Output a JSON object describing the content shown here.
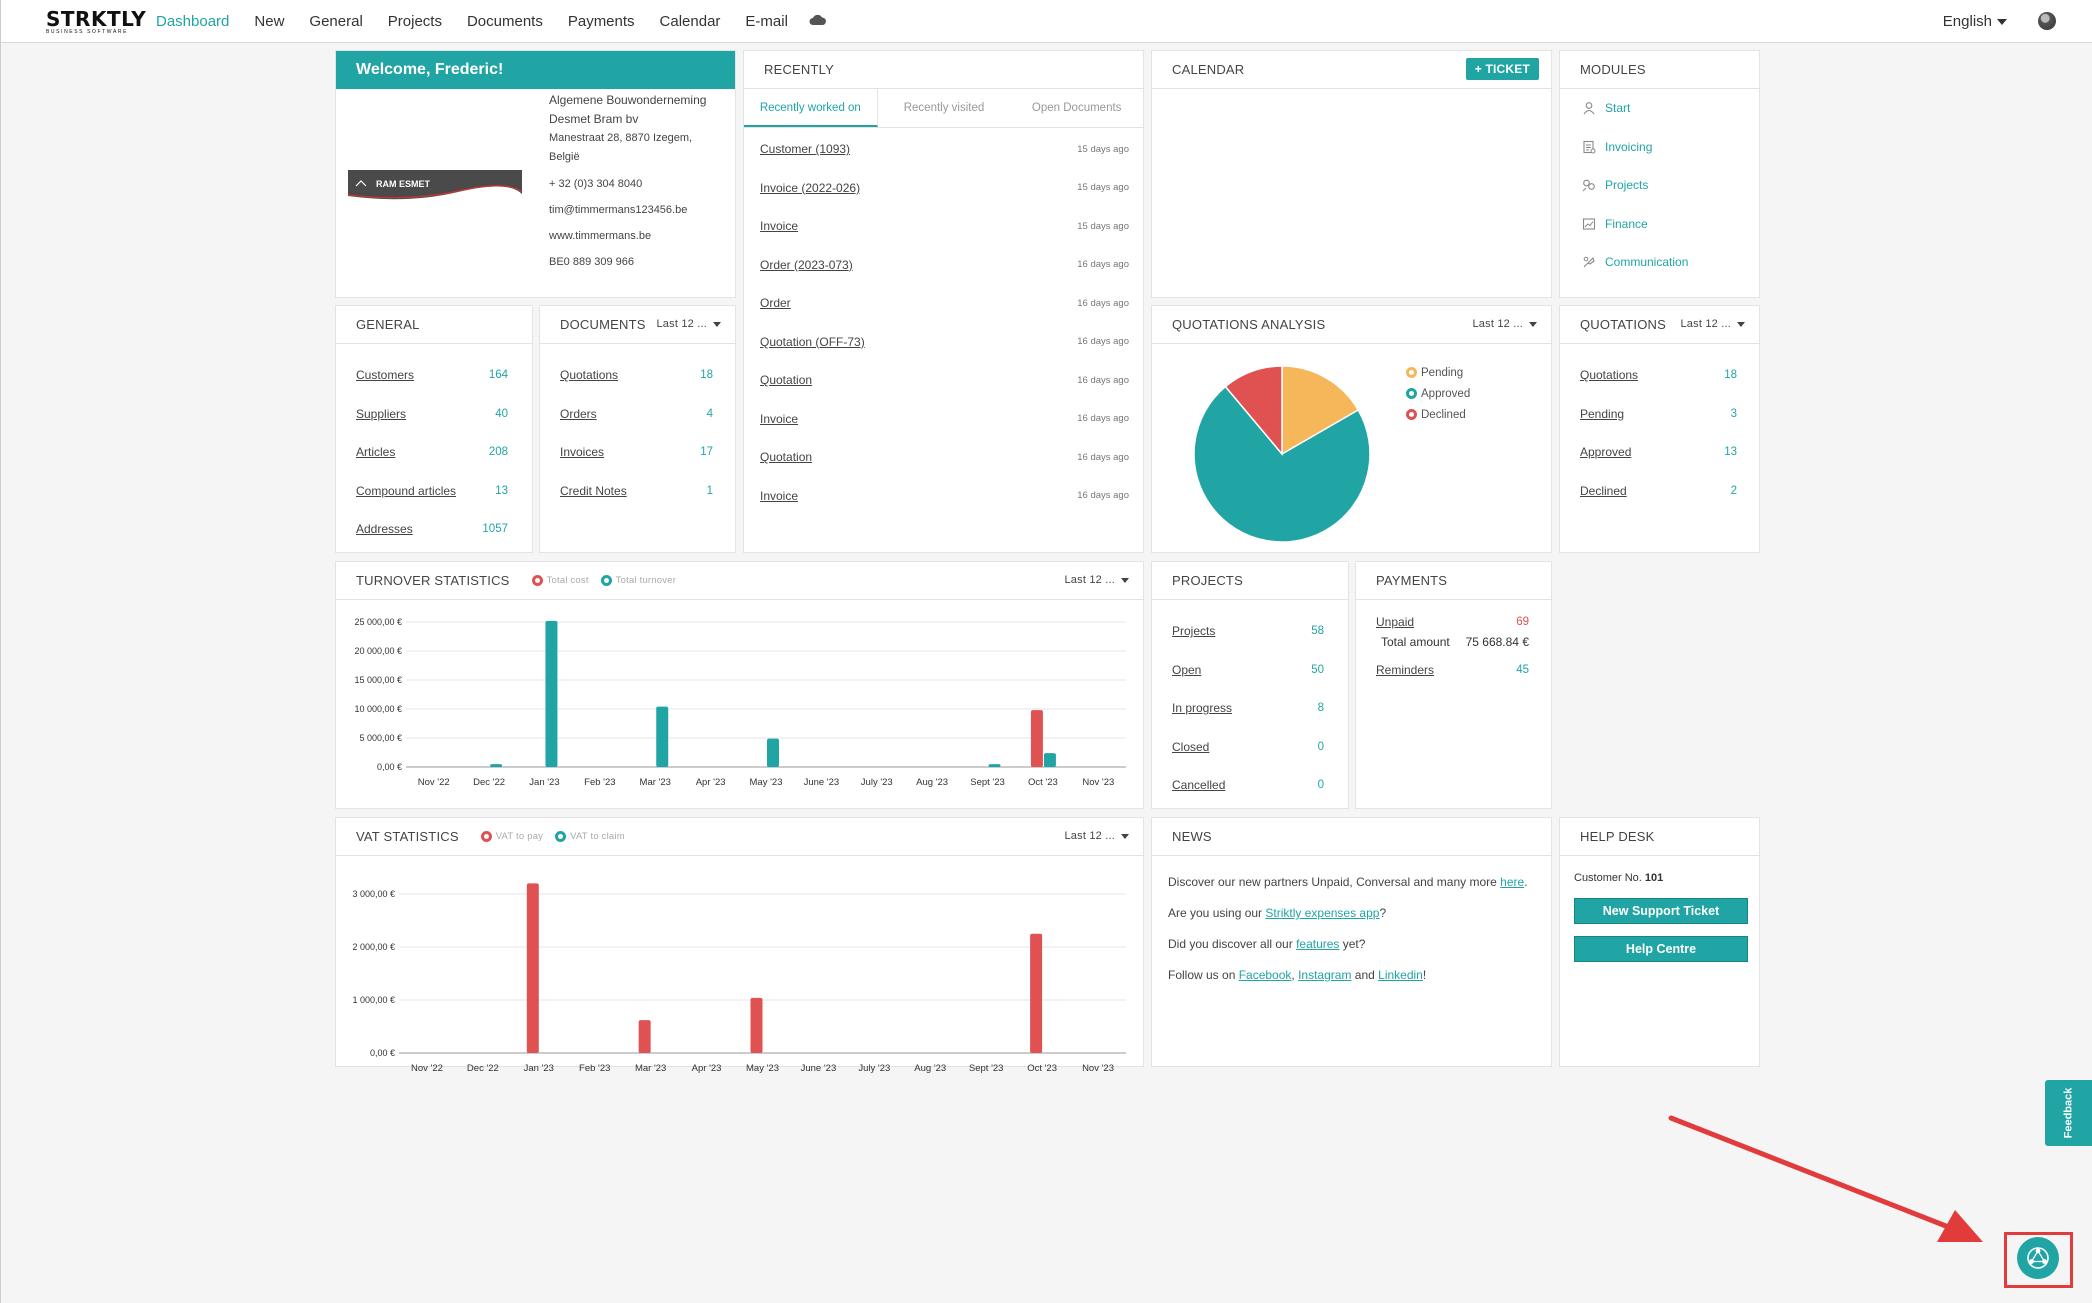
{
  "brand": {
    "name": "STRKTLY",
    "tagline": "BUSINESS SOFTWARE"
  },
  "nav": {
    "items": [
      "Dashboard",
      "New",
      "General",
      "Projects",
      "Documents",
      "Payments",
      "Calendar",
      "E-mail"
    ],
    "active": "Dashboard",
    "language": "English"
  },
  "welcome": {
    "title": "Welcome, Frederic!",
    "company": [
      "Algemene Bouwonderneming",
      "Desmet Bram bv"
    ],
    "address": [
      "Manestraat 28, 8870 Izegem,",
      "België"
    ],
    "phone": "+ 32 (0)3 304 8040",
    "email": "tim@timmermans123456.be",
    "website": "www.timmermans.be",
    "vat": "BE0 889 309 966",
    "logo_text": "RAM ESMET"
  },
  "recently": {
    "title": "RECENTLY",
    "tabs": [
      "Recently worked on",
      "Recently visited",
      "Open Documents"
    ],
    "items": [
      {
        "label": "Customer (1093)",
        "when": "15 days ago"
      },
      {
        "label": "Invoice (2022-026)",
        "when": "15 days ago"
      },
      {
        "label": "Invoice",
        "when": "15 days ago"
      },
      {
        "label": "Order (2023-073)",
        "when": "16 days ago"
      },
      {
        "label": "Order",
        "when": "16 days ago"
      },
      {
        "label": "Quotation (OFF-73)",
        "when": "16 days ago"
      },
      {
        "label": "Quotation",
        "when": "16 days ago"
      },
      {
        "label": "Invoice",
        "when": "16 days ago"
      },
      {
        "label": "Quotation",
        "when": "16 days ago"
      },
      {
        "label": "Invoice",
        "when": "16 days ago"
      }
    ]
  },
  "calendar": {
    "title": "CALENDAR",
    "ticket_label": "+ Ticket"
  },
  "modules": {
    "title": "MODULES",
    "items": [
      {
        "label": "Start",
        "icon": "user-icon"
      },
      {
        "label": "Invoicing",
        "icon": "invoice-icon"
      },
      {
        "label": "Projects",
        "icon": "projects-icon"
      },
      {
        "label": "Finance",
        "icon": "finance-icon"
      },
      {
        "label": "Communication",
        "icon": "communication-icon"
      }
    ]
  },
  "general": {
    "title": "GENERAL",
    "items": [
      {
        "label": "Customers",
        "value": "164"
      },
      {
        "label": "Suppliers",
        "value": "40"
      },
      {
        "label": "Articles",
        "value": "208"
      },
      {
        "label": "Compound articles",
        "value": "13"
      },
      {
        "label": "Addresses",
        "value": "1057"
      }
    ]
  },
  "documents": {
    "title": "DOCUMENTS",
    "period": "Last 12 ...",
    "items": [
      {
        "label": "Quotations",
        "value": "18"
      },
      {
        "label": "Orders",
        "value": "4"
      },
      {
        "label": "Invoices",
        "value": "17"
      },
      {
        "label": "Credit Notes",
        "value": "1"
      }
    ]
  },
  "quotations_analysis": {
    "title": "QUOTATIONS ANALYSIS",
    "period": "Last 12 ...",
    "legend": [
      "Pending",
      "Approved",
      "Declined"
    ]
  },
  "quotations": {
    "title": "QUOTATIONS",
    "period": "Last 12 ...",
    "items": [
      {
        "label": "Quotations",
        "value": "18"
      },
      {
        "label": "Pending",
        "value": "3"
      },
      {
        "label": "Approved",
        "value": "13"
      },
      {
        "label": "Declined",
        "value": "2"
      }
    ]
  },
  "turnover": {
    "title": "TURNOVER STATISTICS",
    "period": "Last 12 ...",
    "legend": [
      "Total cost",
      "Total turnover"
    ]
  },
  "projects": {
    "title": "PROJECTS",
    "items": [
      {
        "label": "Projects",
        "value": "58"
      },
      {
        "label": "Open",
        "value": "50"
      },
      {
        "label": "In progress",
        "value": "8"
      },
      {
        "label": "Closed",
        "value": "0"
      },
      {
        "label": "Cancelled",
        "value": "0"
      }
    ]
  },
  "payments": {
    "title": "PAYMENTS",
    "unpaid_label": "Unpaid",
    "unpaid_value": "69",
    "total_label": "Total amount",
    "total_value": "75 668.84 €",
    "reminders_label": "Reminders",
    "reminders_value": "45"
  },
  "vat": {
    "title": "VAT STATISTICS",
    "period": "Last 12 ...",
    "legend": [
      "VAT to pay",
      "VAT to claim"
    ]
  },
  "news": {
    "title": "NEWS",
    "l1_pre": "Discover our new partners Unpaid, Conversal and many more ",
    "l1_link": "here",
    "l1_post": ".",
    "l2_pre": "Are you using our ",
    "l2_link": "Striktly expenses app",
    "l2_post": "?",
    "l3_pre": "Did you discover all our ",
    "l3_link": "features",
    "l3_post": " yet?",
    "l4_pre": "Follow us on ",
    "l4_link1": "Facebook",
    "l4_sep1": ", ",
    "l4_link2": "Instagram",
    "l4_sep2": " and ",
    "l4_link3": "Linkedin",
    "l4_post": "!"
  },
  "helpdesk": {
    "title": "HELP DESK",
    "customer_label": "Customer No.",
    "customer_no": "101",
    "new_ticket": "New Support Ticket",
    "help_centre": "Help Centre"
  },
  "feedback": {
    "label": "Feedback"
  },
  "colors": {
    "teal": "#20a4a4",
    "red": "#e05252",
    "orange": "#f5b75a"
  },
  "chart_data": [
    {
      "type": "bar",
      "title": "TURNOVER STATISTICS",
      "categories": [
        "Nov '22",
        "Dec '22",
        "Jan '23",
        "Feb '23",
        "Mar '23",
        "Apr '23",
        "May '23",
        "June '23",
        "July '23",
        "Aug '23",
        "Sept '23",
        "Oct '23",
        "Nov '23"
      ],
      "series": [
        {
          "name": "Total cost",
          "color": "#e05252",
          "values": [
            0,
            0,
            0,
            0,
            0,
            0,
            0,
            0,
            0,
            0,
            0,
            9800,
            0
          ]
        },
        {
          "name": "Total turnover",
          "color": "#20a4a4",
          "values": [
            0,
            500,
            25200,
            0,
            10400,
            0,
            4900,
            0,
            0,
            0,
            500,
            2400,
            0
          ]
        }
      ],
      "yticks": [
        "0,00 €",
        "5 000,00 €",
        "10 000,00 €",
        "15 000,00 €",
        "20 000,00 €",
        "25 000,00 €"
      ],
      "ylim": [
        0,
        25000
      ]
    },
    {
      "type": "bar",
      "title": "VAT STATISTICS",
      "categories": [
        "Nov '22",
        "Dec '22",
        "Jan '23",
        "Feb '23",
        "Mar '23",
        "Apr '23",
        "May '23",
        "June '23",
        "July '23",
        "Aug '23",
        "Sept '23",
        "Oct '23",
        "Nov '23"
      ],
      "series": [
        {
          "name": "VAT to pay",
          "color": "#e05252",
          "values": [
            0,
            0,
            3200,
            0,
            620,
            0,
            1040,
            0,
            0,
            0,
            0,
            2250,
            0
          ]
        },
        {
          "name": "VAT to claim",
          "color": "#20a4a4",
          "values": [
            0,
            0,
            0,
            0,
            0,
            0,
            0,
            0,
            0,
            0,
            0,
            0,
            0
          ]
        }
      ],
      "yticks": [
        "0,00 €",
        "1 000,00 €",
        "2 000,00 €",
        "3 000,00 €"
      ],
      "ylim": [
        0,
        3000
      ]
    },
    {
      "type": "pie",
      "title": "QUOTATIONS ANALYSIS",
      "labels": [
        "Pending",
        "Approved",
        "Declined"
      ],
      "values": [
        3,
        13,
        2
      ],
      "colors": [
        "#f5b75a",
        "#20a4a4",
        "#e05252"
      ]
    }
  ]
}
